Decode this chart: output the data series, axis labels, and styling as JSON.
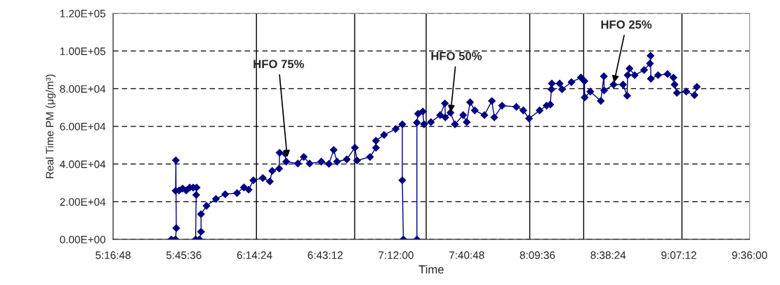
{
  "chart_data": {
    "type": "line",
    "xlabel": "Time",
    "ylabel": "Real Time PM (μg/m³)",
    "xlim": [
      5.28,
      9.6
    ],
    "xticks": [
      {
        "value": 5.28,
        "label": "5:16:48"
      },
      {
        "value": 5.76,
        "label": "5:45:36"
      },
      {
        "value": 6.24,
        "label": "6:14:24"
      },
      {
        "value": 6.72,
        "label": "6:43:12"
      },
      {
        "value": 7.2,
        "label": "7:12:00"
      },
      {
        "value": 7.68,
        "label": "7:40:48"
      },
      {
        "value": 8.16,
        "label": "8:09:36"
      },
      {
        "value": 8.64,
        "label": "8:38:24"
      },
      {
        "value": 9.12,
        "label": "9:07:12"
      },
      {
        "value": 9.6,
        "label": "9:36:00"
      }
    ],
    "ylim": [
      0,
      120000
    ],
    "yticks": [
      {
        "value": 0,
        "label": "0.00E+00"
      },
      {
        "value": 20000,
        "label": "2.00E+04"
      },
      {
        "value": 40000,
        "label": "4.00E+04"
      },
      {
        "value": 60000,
        "label": "6.00E+04"
      },
      {
        "value": 80000,
        "label": "8.00E+04"
      },
      {
        "value": 100000,
        "label": "1.00E+05"
      },
      {
        "value": 120000,
        "label": "1.20E+05"
      }
    ],
    "grid": "y",
    "marker": "diamond",
    "line_style": "solid",
    "series": [
      {
        "color": "#000080",
        "x": [
          5.676,
          5.704,
          5.709,
          5.706,
          5.704,
          5.728,
          5.752,
          5.776,
          5.8,
          5.824,
          5.847,
          5.844,
          5.84,
          5.866,
          5.877,
          5.877,
          5.914,
          5.978,
          6.041,
          6.121,
          6.168,
          6.2,
          6.232,
          6.296,
          6.344,
          6.36,
          6.407,
          6.41,
          6.447,
          6.455,
          6.534,
          6.574,
          6.614,
          6.693,
          6.745,
          6.777,
          6.8,
          6.866,
          6.921,
          6.936,
          7.024,
          7.064,
          7.064,
          7.119,
          7.198,
          7.243,
          7.243,
          7.25,
          7.342,
          7.342,
          7.35,
          7.382,
          7.39,
          7.437,
          7.5,
          7.532,
          7.535,
          7.57,
          7.6,
          7.656,
          7.68,
          7.703,
          7.735,
          7.8,
          7.851,
          7.867,
          7.92,
          8.017,
          8.064,
          8.103,
          8.175,
          8.222,
          8.247,
          8.255,
          8.258,
          8.311,
          8.327,
          8.391,
          8.455,
          8.479,
          8.481,
          8.519,
          8.59,
          8.611,
          8.613,
          8.677,
          8.741,
          8.769,
          8.772,
          8.785,
          8.82,
          8.884,
          8.924,
          8.928,
          8.93,
          8.979,
          9.043,
          9.083,
          9.091,
          9.107,
          9.17,
          9.226,
          9.242
        ],
        "values": [
          0,
          0,
          6000,
          42000,
          25800,
          26000,
          27000,
          26000,
          27500,
          27500,
          27500,
          23600,
          0,
          0,
          4100,
          13400,
          17800,
          21500,
          24000,
          24600,
          27600,
          26400,
          31400,
          32600,
          30800,
          36400,
          37600,
          46000,
          45600,
          41300,
          40300,
          43800,
          40300,
          41300,
          40100,
          47500,
          41300,
          42500,
          48700,
          41900,
          43800,
          48700,
          52400,
          55500,
          58600,
          61100,
          31400,
          0,
          0,
          62000,
          66700,
          67900,
          61100,
          62300,
          66000,
          72200,
          64800,
          67300,
          61100,
          66000,
          62300,
          72800,
          68500,
          66000,
          73500,
          64800,
          71000,
          70400,
          68500,
          64200,
          68500,
          71000,
          71600,
          79700,
          82800,
          82800,
          79700,
          83500,
          86000,
          84100,
          75400,
          78500,
          73500,
          86600,
          79100,
          82200,
          82200,
          76300,
          87200,
          90700,
          87200,
          89900,
          93400,
          97500,
          85300,
          87200,
          87800,
          85900,
          82200,
          77800,
          78500,
          76600,
          81000
        ]
      }
    ],
    "ref_lines": [
      {
        "axis": "x",
        "value": 6.253,
        "color": "#000000"
      },
      {
        "axis": "x",
        "value": 6.92,
        "color": "#000000"
      },
      {
        "axis": "x",
        "value": 7.405,
        "color": "#000000"
      },
      {
        "axis": "x",
        "value": 8.108,
        "color": "#000000"
      },
      {
        "axis": "x",
        "value": 8.474,
        "color": "#000000"
      },
      {
        "axis": "x",
        "value": 9.141,
        "color": "#000000"
      }
    ],
    "annotations": [
      {
        "text": "HFO 75%",
        "x": 6.463,
        "y": 42600
      },
      {
        "text": "HFO 50%",
        "x": 7.57,
        "y": 66500
      },
      {
        "text": "HFO 25%",
        "x": 8.677,
        "y": 82200
      }
    ]
  }
}
